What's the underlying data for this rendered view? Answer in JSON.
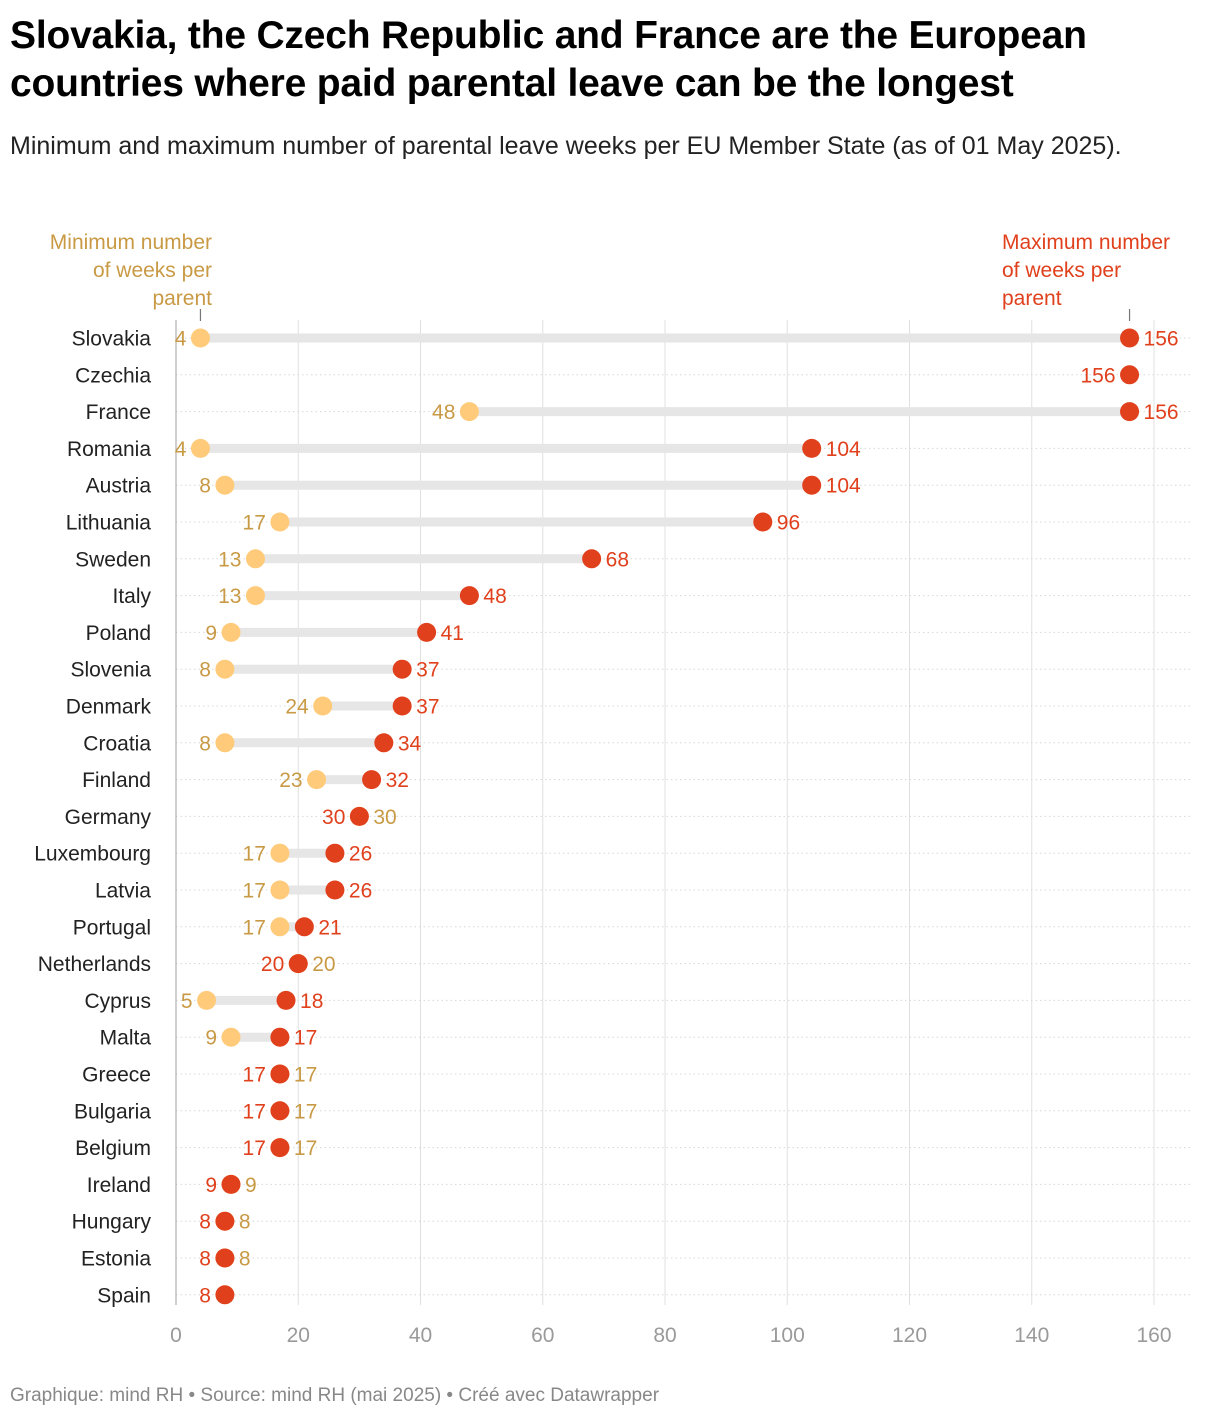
{
  "title": "Slovakia, the Czech Republic and France are the European countries where paid parental leave can be the longest",
  "subtitle": "Minimum and maximum number of parental leave weeks per EU Member State (as of 01 May 2025).",
  "footer": "Graphique: mind RH • Source: mind RH (mai 2025) • Créé avec Datawrapper",
  "colors": {
    "min": "#ffcb7a",
    "min_label": "#c99a45",
    "max": "#e0401c",
    "max_label": "#e0401c",
    "range_bar": "#e6e6e6",
    "grid": "#e0e0e0",
    "tick_label": "#9a9a9a",
    "country_label": "#222222"
  },
  "chart_data": {
    "type": "range_dot",
    "x_range": [
      0,
      160
    ],
    "x_ticks": [
      0,
      20,
      40,
      60,
      80,
      100,
      120,
      140,
      160
    ],
    "legend_min": [
      "Minimum number",
      "of weeks per",
      "parent"
    ],
    "legend_max": [
      "Maximum number",
      "of weeks per",
      "parent"
    ],
    "legend_min_at": 4,
    "legend_max_at": 156,
    "series": [
      {
        "name": "Minimum number of weeks per parent",
        "key": "min"
      },
      {
        "name": "Maximum number of weeks per parent",
        "key": "max"
      }
    ],
    "rows": [
      {
        "country": "Slovakia",
        "min": 4,
        "max": 156
      },
      {
        "country": "Czechia",
        "min": null,
        "max": 156
      },
      {
        "country": "France",
        "min": 48,
        "max": 156
      },
      {
        "country": "Romania",
        "min": 4,
        "max": 104
      },
      {
        "country": "Austria",
        "min": 8,
        "max": 104
      },
      {
        "country": "Lithuania",
        "min": 17,
        "max": 96
      },
      {
        "country": "Sweden",
        "min": 13,
        "max": 68
      },
      {
        "country": "Italy",
        "min": 13,
        "max": 48
      },
      {
        "country": "Poland",
        "min": 9,
        "max": 41
      },
      {
        "country": "Slovenia",
        "min": 8,
        "max": 37
      },
      {
        "country": "Denmark",
        "min": 24,
        "max": 37
      },
      {
        "country": "Croatia",
        "min": 8,
        "max": 34
      },
      {
        "country": "Finland",
        "min": 23,
        "max": 32
      },
      {
        "country": "Germany",
        "min": 30,
        "max": 30
      },
      {
        "country": "Luxembourg",
        "min": 17,
        "max": 26
      },
      {
        "country": "Latvia",
        "min": 17,
        "max": 26
      },
      {
        "country": "Portugal",
        "min": 17,
        "max": 21
      },
      {
        "country": "Netherlands",
        "min": 20,
        "max": 20
      },
      {
        "country": "Cyprus",
        "min": 5,
        "max": 18
      },
      {
        "country": "Malta",
        "min": 9,
        "max": 17
      },
      {
        "country": "Greece",
        "min": 17,
        "max": 17
      },
      {
        "country": "Bulgaria",
        "min": 17,
        "max": 17
      },
      {
        "country": "Belgium",
        "min": 17,
        "max": 17
      },
      {
        "country": "Ireland",
        "min": 9,
        "max": 9
      },
      {
        "country": "Hungary",
        "min": 8,
        "max": 8
      },
      {
        "country": "Estonia",
        "min": 8,
        "max": 8
      },
      {
        "country": "Spain",
        "min": null,
        "max": 8
      }
    ]
  }
}
